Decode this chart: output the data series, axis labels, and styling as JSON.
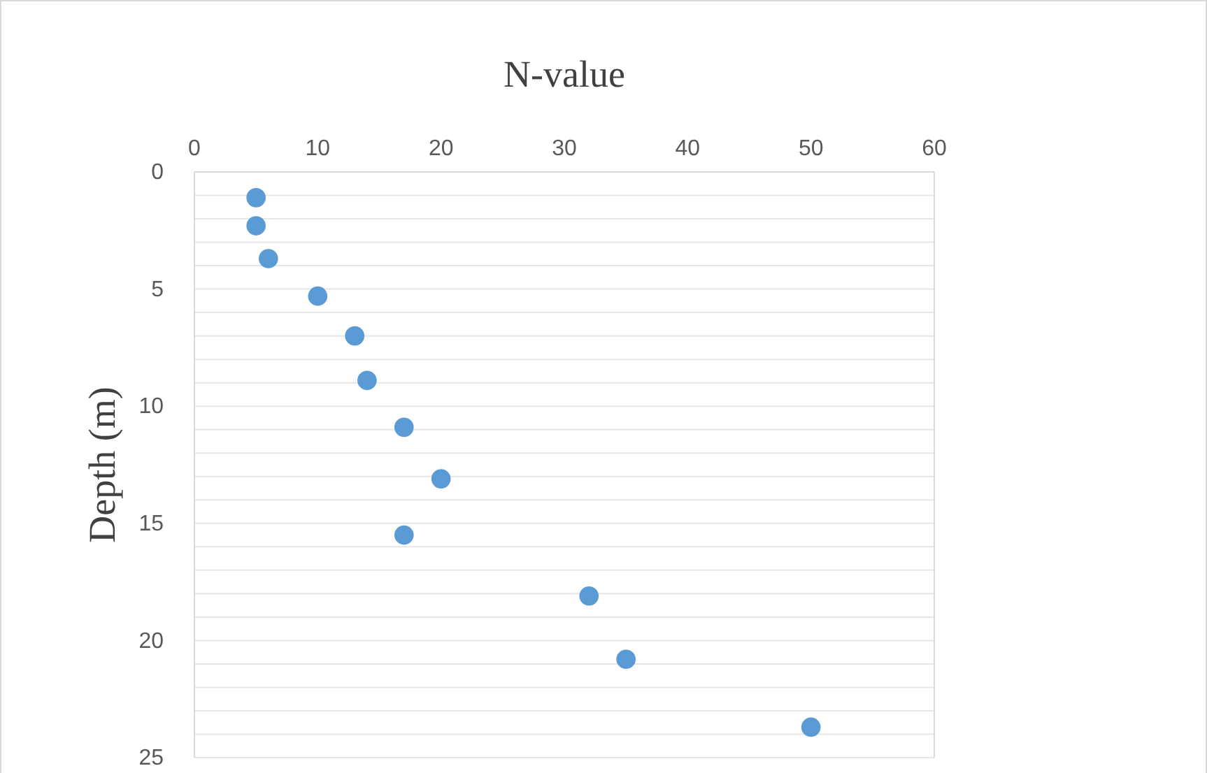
{
  "chart_data": {
    "type": "scatter",
    "title": "N-value",
    "ylabel": "Depth (m)",
    "x": [
      5,
      5,
      6,
      10,
      13,
      14,
      17,
      20,
      17,
      32,
      35,
      50
    ],
    "values": [
      1.1,
      2.3,
      3.7,
      5.3,
      7.0,
      8.9,
      10.9,
      13.1,
      15.5,
      18.1,
      20.8,
      23.7
    ],
    "color": "#5b9bd5",
    "marker": "circle",
    "xlim": [
      0,
      60
    ],
    "xticks": [
      0,
      10,
      20,
      30,
      40,
      50,
      60
    ],
    "ylim": [
      25,
      0
    ],
    "yticks": [
      0,
      {
        "value": 1,
        "label": null
      },
      {
        "value": 2,
        "label": null
      },
      {
        "value": 3,
        "label": null
      },
      {
        "value": 4,
        "label": null
      },
      5,
      {
        "value": 6,
        "label": null
      },
      {
        "value": 7,
        "label": null
      },
      {
        "value": 8,
        "label": null
      },
      {
        "value": 9,
        "label": null
      },
      10,
      {
        "value": 11,
        "label": null
      },
      {
        "value": 12,
        "label": null
      },
      {
        "value": 13,
        "label": null
      },
      {
        "value": 14,
        "label": null
      },
      15,
      {
        "value": 16,
        "label": null
      },
      {
        "value": 17,
        "label": null
      },
      {
        "value": 18,
        "label": null
      },
      {
        "value": 19,
        "label": null
      },
      20,
      {
        "value": 21,
        "label": null
      },
      {
        "value": 22,
        "label": null
      },
      {
        "value": 23,
        "label": null
      },
      {
        "value": 24,
        "label": null
      },
      25
    ],
    "grid": "y"
  }
}
